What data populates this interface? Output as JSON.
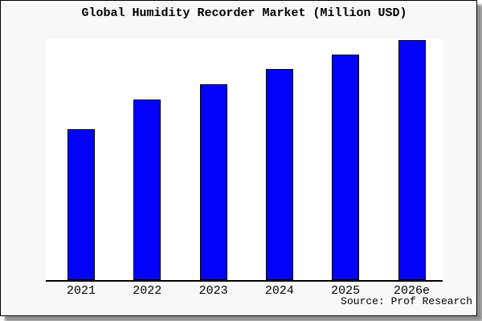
{
  "window": {
    "page_background": "#ffffff",
    "card_background": "#f8f8f8",
    "card_border_color": "#000000",
    "shadow_color": "#8f8f8f"
  },
  "chart": {
    "title": "Global Humidity Recorder Market (Million USD)",
    "source_note": "Source: Prof Research"
  },
  "chart_data": {
    "type": "bar",
    "title": "Global Humidity Recorder Market (Million USD)",
    "categories": [
      "2021",
      "2022",
      "2023",
      "2024",
      "2025",
      "2026e"
    ],
    "values": [
      63,
      75.3,
      81.7,
      88,
      94,
      100
    ],
    "values_note": "y-axis has no scale or gridlines in the chart; values are bar heights relative to the tallest (2026e) bar = 100",
    "series_name": "Global Humidity Recorder Market",
    "xlabel": "",
    "ylabel": "",
    "ylim": [
      0,
      100
    ],
    "grid": false,
    "legend": false,
    "y_axis_labeled": false,
    "bar_color": "#0202fa",
    "bar_border_color": "#000000",
    "source": "Source: Prof Research"
  }
}
